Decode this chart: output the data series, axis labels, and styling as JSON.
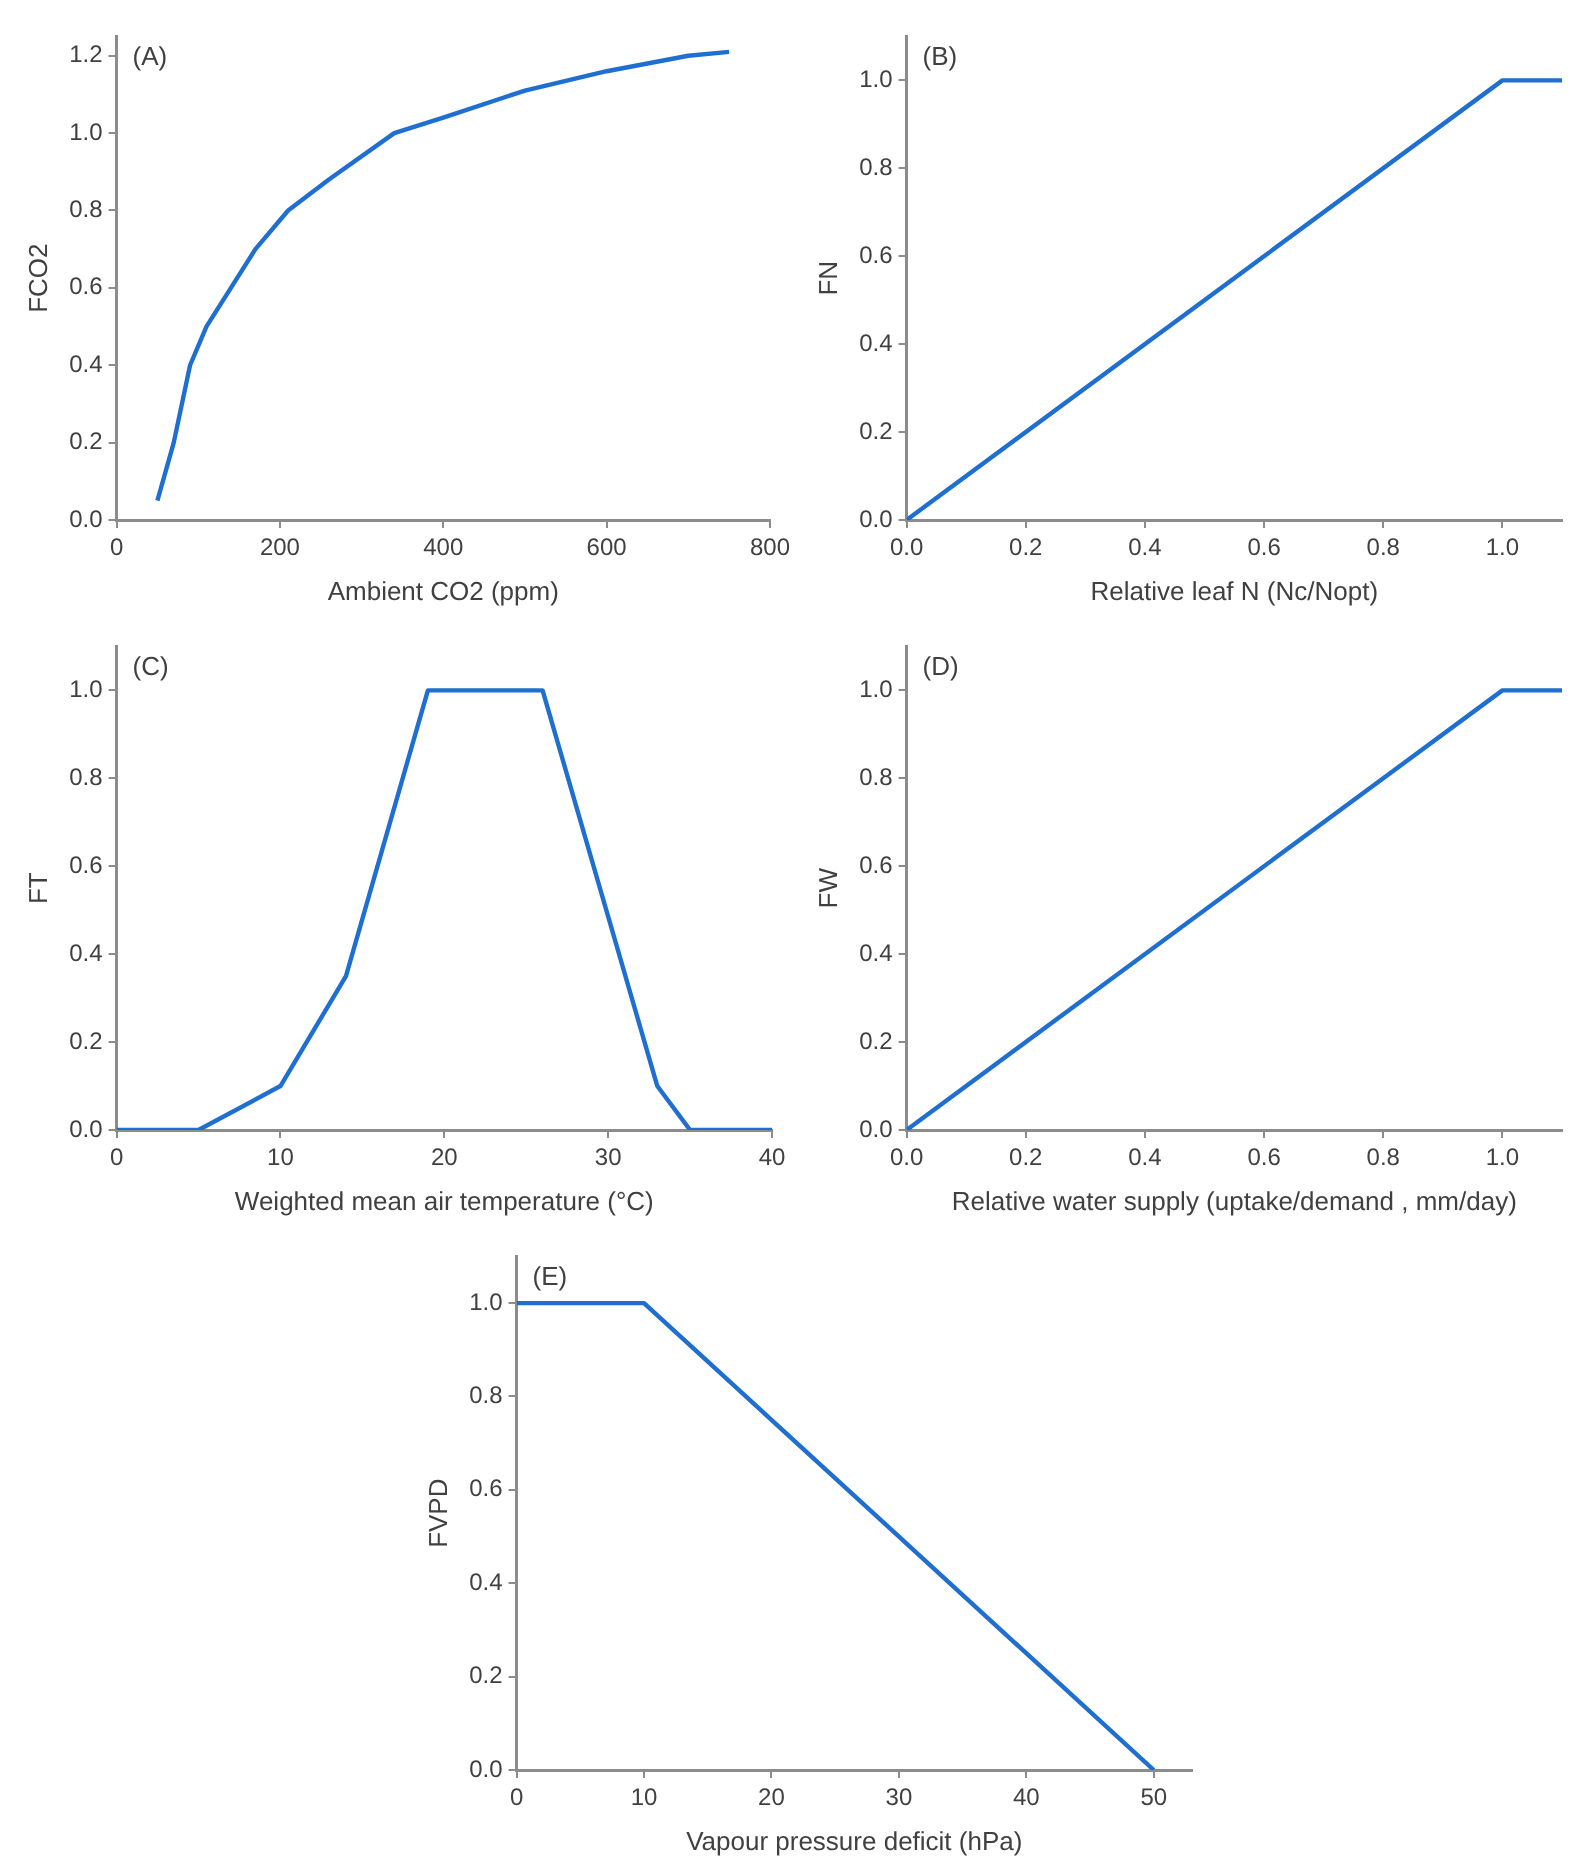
{
  "chart_data": [
    {
      "type": "line",
      "annotations": [
        "(A)"
      ],
      "xlabel": "Ambient CO2 (ppm)",
      "ylabel": "FCO2",
      "x": [
        50,
        70,
        90,
        110,
        140,
        170,
        210,
        260,
        340,
        400,
        500,
        600,
        700,
        750
      ],
      "series": [
        {
          "color": "#1f6fd1",
          "values": [
            0.05,
            0.2,
            0.4,
            0.5,
            0.6,
            0.7,
            0.8,
            0.88,
            1.0,
            1.04,
            1.11,
            1.16,
            1.2,
            1.21
          ]
        }
      ],
      "xlim": [
        0,
        800
      ],
      "xticks": [
        0,
        200,
        400,
        600,
        800
      ],
      "ylim": [
        0,
        1.25
      ],
      "yticks": [
        {
          "value": 0,
          "label": "0.0"
        },
        {
          "value": 0.2,
          "label": "0.2"
        },
        {
          "value": 0.4,
          "label": "0.4"
        },
        {
          "value": 0.6,
          "label": "0.6"
        },
        {
          "value": 0.8,
          "label": "0.8"
        },
        {
          "value": 1,
          "label": "1.0"
        },
        {
          "value": 1.2,
          "label": "1.2"
        }
      ],
      "marker": "none"
    },
    {
      "type": "line",
      "annotations": [
        "(B)"
      ],
      "xlabel": "Relative leaf N (Nc/Nopt)",
      "ylabel": "FN",
      "x": [
        0,
        1,
        1.1
      ],
      "series": [
        {
          "color": "#1f6fd1",
          "values": [
            0,
            1,
            1
          ]
        }
      ],
      "xlim": [
        0,
        1.1
      ],
      "xticks": [
        {
          "value": 0,
          "label": "0.0"
        },
        {
          "value": 0.2,
          "label": "0.2"
        },
        {
          "value": 0.4,
          "label": "0.4"
        },
        {
          "value": 0.6,
          "label": "0.6"
        },
        {
          "value": 0.8,
          "label": "0.8"
        },
        {
          "value": 1,
          "label": "1.0"
        }
      ],
      "ylim": [
        0,
        1.1
      ],
      "yticks": [
        {
          "value": 0,
          "label": "0.0"
        },
        {
          "value": 0.2,
          "label": "0.2"
        },
        {
          "value": 0.4,
          "label": "0.4"
        },
        {
          "value": 0.6,
          "label": "0.6"
        },
        {
          "value": 0.8,
          "label": "0.8"
        },
        {
          "value": 1,
          "label": "1.0"
        }
      ],
      "marker": "none"
    },
    {
      "type": "line",
      "annotations": [
        "(C)"
      ],
      "xlabel": "Weighted mean air temperature (°C)",
      "ylabel": "FT",
      "x": [
        0,
        5,
        10,
        14,
        19,
        26,
        33,
        35,
        40
      ],
      "series": [
        {
          "color": "#1f6fd1",
          "values": [
            0,
            0,
            0.1,
            0.35,
            1,
            1,
            0.1,
            0,
            0
          ]
        }
      ],
      "xlim": [
        0,
        40
      ],
      "xticks": [
        0,
        10,
        20,
        30,
        40
      ],
      "ylim": [
        0,
        1.1
      ],
      "yticks": [
        {
          "value": 0,
          "label": "0.0"
        },
        {
          "value": 0.2,
          "label": "0.2"
        },
        {
          "value": 0.4,
          "label": "0.4"
        },
        {
          "value": 0.6,
          "label": "0.6"
        },
        {
          "value": 0.8,
          "label": "0.8"
        },
        {
          "value": 1,
          "label": "1.0"
        }
      ],
      "marker": "none"
    },
    {
      "type": "line",
      "annotations": [
        "(D)"
      ],
      "xlabel": "Relative water supply (uptake/demand , mm/day)",
      "ylabel": "FW",
      "x": [
        0,
        1,
        1.1
      ],
      "series": [
        {
          "color": "#1f6fd1",
          "values": [
            0,
            1,
            1
          ]
        }
      ],
      "xlim": [
        0,
        1.1
      ],
      "xticks": [
        {
          "value": 0,
          "label": "0.0"
        },
        {
          "value": 0.2,
          "label": "0.2"
        },
        {
          "value": 0.4,
          "label": "0.4"
        },
        {
          "value": 0.6,
          "label": "0.6"
        },
        {
          "value": 0.8,
          "label": "0.8"
        },
        {
          "value": 1,
          "label": "1.0"
        }
      ],
      "ylim": [
        0,
        1.1
      ],
      "yticks": [
        {
          "value": 0,
          "label": "0.0"
        },
        {
          "value": 0.2,
          "label": "0.2"
        },
        {
          "value": 0.4,
          "label": "0.4"
        },
        {
          "value": 0.6,
          "label": "0.6"
        },
        {
          "value": 0.8,
          "label": "0.8"
        },
        {
          "value": 1,
          "label": "1.0"
        }
      ],
      "marker": "none"
    },
    {
      "type": "line",
      "annotations": [
        "(E)"
      ],
      "xlabel": "Vapour pressure deficit (hPa)",
      "ylabel": "FVPD",
      "x": [
        0,
        10,
        50
      ],
      "series": [
        {
          "color": "#1f6fd1",
          "values": [
            1,
            1,
            0
          ]
        }
      ],
      "xlim": [
        0,
        53
      ],
      "xticks": [
        0,
        10,
        20,
        30,
        40,
        50
      ],
      "ylim": [
        0,
        1.1
      ],
      "yticks": [
        {
          "value": 0,
          "label": "0.0"
        },
        {
          "value": 0.2,
          "label": "0.2"
        },
        {
          "value": 0.4,
          "label": "0.4"
        },
        {
          "value": 0.6,
          "label": "0.6"
        },
        {
          "value": 0.8,
          "label": "0.8"
        },
        {
          "value": 1,
          "label": "1.0"
        }
      ],
      "marker": "none"
    }
  ]
}
